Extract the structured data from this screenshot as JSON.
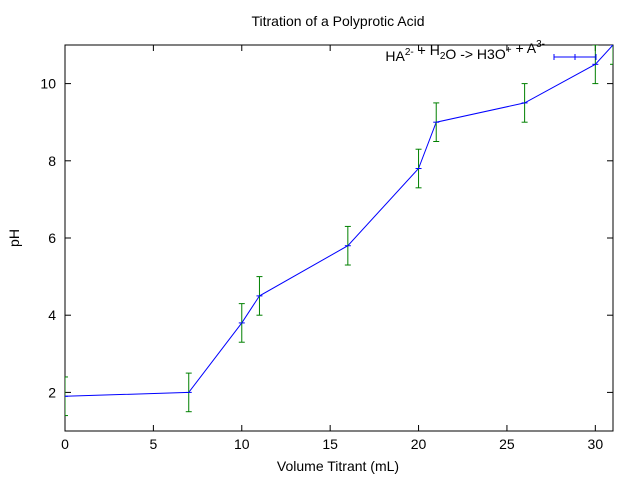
{
  "chart_data": {
    "type": "line",
    "title": "Titration of a Polyprotic Acid",
    "xlabel": "Volume Titrant (mL)",
    "ylabel": "pH",
    "xlim": [
      0,
      31
    ],
    "ylim": [
      1,
      11
    ],
    "xticks": [
      0,
      5,
      10,
      15,
      20,
      25,
      30
    ],
    "yticks": [
      2,
      4,
      6,
      8,
      10
    ],
    "grid": false,
    "legend_position": "top-right",
    "legend": {
      "parts": [
        {
          "t": "HA",
          "sup": "2-"
        },
        {
          "t": " + H",
          "sub": "2"
        },
        {
          "t": "O -> H3O",
          "sup": "+"
        },
        {
          "t": " + A",
          "sup": "3-"
        }
      ]
    },
    "series": [
      {
        "color": "#0000ff",
        "error_color": "#008000",
        "points": [
          {
            "x": 0,
            "y": 1.9,
            "err": 0.5
          },
          {
            "x": 7,
            "y": 2.0,
            "err": 0.5
          },
          {
            "x": 10,
            "y": 3.8,
            "err": 0.5
          },
          {
            "x": 11,
            "y": 4.5,
            "err": 0.5
          },
          {
            "x": 16,
            "y": 5.8,
            "err": 0.5
          },
          {
            "x": 20,
            "y": 7.8,
            "err": 0.5
          },
          {
            "x": 21,
            "y": 9.0,
            "err": 0.5
          },
          {
            "x": 26,
            "y": 9.5,
            "err": 0.5
          },
          {
            "x": 30,
            "y": 10.5,
            "err": 0.5
          },
          {
            "x": 31,
            "y": 11.0,
            "err": 0.5
          }
        ]
      }
    ]
  }
}
